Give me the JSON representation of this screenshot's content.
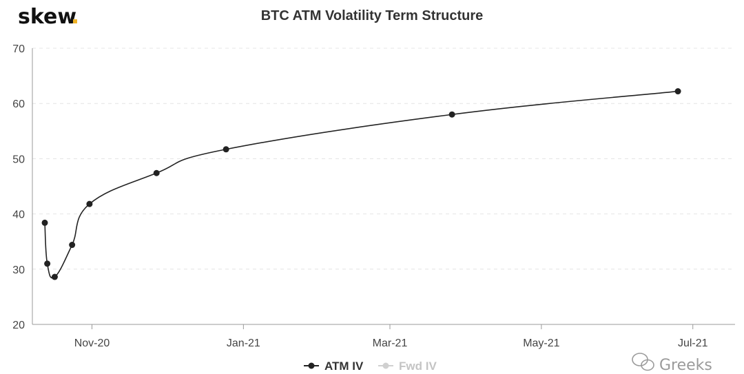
{
  "brand": {
    "name": "skew",
    "accent_color": "#f0b429"
  },
  "watermark": {
    "text": "Greeks",
    "icon": "wechat-icon"
  },
  "chart_data": {
    "type": "line",
    "title": "BTC ATM Volatility Term Structure",
    "xlabel": "",
    "ylabel": "",
    "ylim": [
      20,
      70
    ],
    "yticks": [
      20,
      30,
      40,
      50,
      60,
      70
    ],
    "xlim": [
      "2020-10-08",
      "2021-07-18"
    ],
    "xticks": [
      {
        "date": "2020-11-01",
        "label": "Nov-20"
      },
      {
        "date": "2021-01-01",
        "label": "Jan-21"
      },
      {
        "date": "2021-03-01",
        "label": "Mar-21"
      },
      {
        "date": "2021-05-01",
        "label": "May-21"
      },
      {
        "date": "2021-07-01",
        "label": "Jul-21"
      }
    ],
    "grid": true,
    "legend_position": "bottom",
    "series": [
      {
        "name": "ATM IV",
        "color": "#222222",
        "active": true,
        "points": [
          {
            "x": "2020-10-13",
            "y": 38.4
          },
          {
            "x": "2020-10-14",
            "y": 31.0
          },
          {
            "x": "2020-10-17",
            "y": 28.6
          },
          {
            "x": "2020-10-24",
            "y": 34.4
          },
          {
            "x": "2020-10-31",
            "y": 41.8
          },
          {
            "x": "2020-11-27",
            "y": 47.4
          },
          {
            "x": "2020-12-25",
            "y": 51.7
          },
          {
            "x": "2021-03-26",
            "y": 58.0
          },
          {
            "x": "2021-06-25",
            "y": 62.2
          }
        ]
      },
      {
        "name": "Fwd IV",
        "color": "#cccccc",
        "active": false,
        "points": []
      }
    ]
  }
}
